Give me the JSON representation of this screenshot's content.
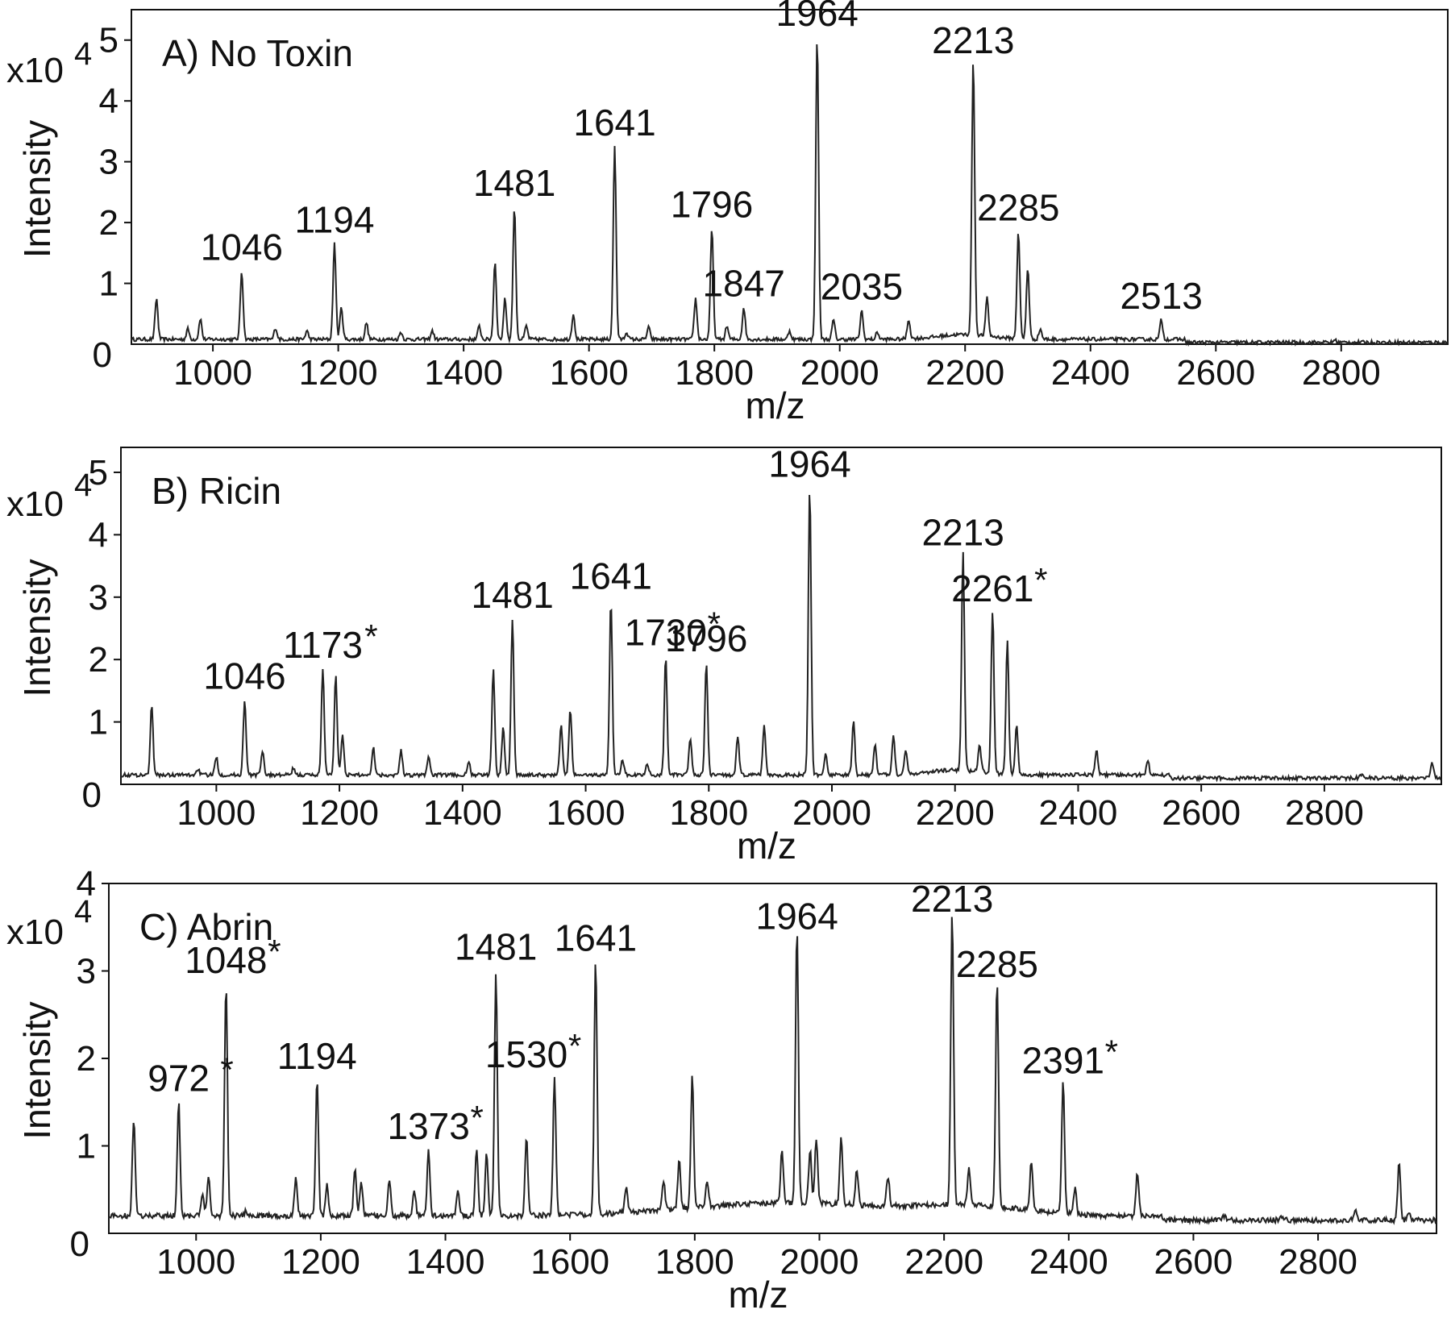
{
  "chart_data": [
    {
      "type": "line",
      "panel": "A",
      "title": "A) No Toxin",
      "xlabel": "m/z",
      "ylabel": "Intensity",
      "y_multiplier": "x10",
      "y_exponent": "4",
      "xlim": [
        870,
        2970
      ],
      "ylim": [
        0,
        5.5
      ],
      "x_ticks": [
        "1000",
        "1200",
        "1400",
        "1600",
        "1800",
        "2000",
        "2200",
        "2400",
        "2600",
        "2800"
      ],
      "y_ticks": [
        "0",
        "1",
        "2",
        "3",
        "4",
        "5"
      ],
      "baseline": 0.08,
      "peaks": [
        {
          "x": 910,
          "y": 0.75,
          "label": ""
        },
        {
          "x": 960,
          "y": 0.25,
          "label": ""
        },
        {
          "x": 980,
          "y": 0.42,
          "label": ""
        },
        {
          "x": 1046,
          "y": 1.2,
          "label": "1046",
          "star": false
        },
        {
          "x": 1100,
          "y": 0.27,
          "label": ""
        },
        {
          "x": 1150,
          "y": 0.22,
          "label": ""
        },
        {
          "x": 1194,
          "y": 1.65,
          "label": "1194",
          "star": false
        },
        {
          "x": 1205,
          "y": 0.6,
          "label": ""
        },
        {
          "x": 1245,
          "y": 0.35,
          "label": ""
        },
        {
          "x": 1300,
          "y": 0.2,
          "label": ""
        },
        {
          "x": 1350,
          "y": 0.22,
          "label": ""
        },
        {
          "x": 1425,
          "y": 0.3,
          "label": ""
        },
        {
          "x": 1450,
          "y": 1.35,
          "label": ""
        },
        {
          "x": 1466,
          "y": 0.75,
          "label": ""
        },
        {
          "x": 1481,
          "y": 2.25,
          "label": "1481",
          "star": false
        },
        {
          "x": 1500,
          "y": 0.3,
          "label": ""
        },
        {
          "x": 1575,
          "y": 0.5,
          "label": ""
        },
        {
          "x": 1641,
          "y": 3.25,
          "label": "1641",
          "star": false
        },
        {
          "x": 1660,
          "y": 0.2,
          "label": ""
        },
        {
          "x": 1695,
          "y": 0.28,
          "label": ""
        },
        {
          "x": 1770,
          "y": 0.75,
          "label": ""
        },
        {
          "x": 1796,
          "y": 1.9,
          "label": "1796",
          "star": false
        },
        {
          "x": 1820,
          "y": 0.3,
          "label": ""
        },
        {
          "x": 1847,
          "y": 0.6,
          "label": "1847",
          "star": false
        },
        {
          "x": 1920,
          "y": 0.22,
          "label": ""
        },
        {
          "x": 1964,
          "y": 5.05,
          "label": "1964",
          "star": false
        },
        {
          "x": 1990,
          "y": 0.4,
          "label": ""
        },
        {
          "x": 2035,
          "y": 0.55,
          "label": "2035",
          "star": false
        },
        {
          "x": 2060,
          "y": 0.2,
          "label": ""
        },
        {
          "x": 2110,
          "y": 0.4,
          "label": ""
        },
        {
          "x": 2213,
          "y": 4.6,
          "label": "2213",
          "star": false
        },
        {
          "x": 2235,
          "y": 0.7,
          "label": ""
        },
        {
          "x": 2285,
          "y": 1.85,
          "label": "2285",
          "star": false
        },
        {
          "x": 2300,
          "y": 1.25,
          "label": ""
        },
        {
          "x": 2320,
          "y": 0.25,
          "label": ""
        },
        {
          "x": 2513,
          "y": 0.4,
          "label": "2513",
          "star": false
        },
        {
          "x": 2790,
          "y": 0.12,
          "label": ""
        }
      ]
    },
    {
      "type": "line",
      "panel": "B",
      "title": "B) Ricin",
      "xlabel": "m/z",
      "ylabel": "Intensity",
      "y_multiplier": "x10",
      "y_exponent": "4",
      "xlim": [
        845,
        2990
      ],
      "ylim": [
        0,
        5.4
      ],
      "x_ticks": [
        "1000",
        "1200",
        "1400",
        "1600",
        "1800",
        "2000",
        "2200",
        "2400",
        "2600",
        "2800"
      ],
      "y_ticks": [
        "0",
        "1",
        "2",
        "3",
        "4",
        "5"
      ],
      "baseline": 0.15,
      "peaks": [
        {
          "x": 895,
          "y": 1.25,
          "label": ""
        },
        {
          "x": 970,
          "y": 0.25,
          "label": ""
        },
        {
          "x": 1000,
          "y": 0.45,
          "label": ""
        },
        {
          "x": 1046,
          "y": 1.35,
          "label": "1046",
          "star": false
        },
        {
          "x": 1075,
          "y": 0.55,
          "label": ""
        },
        {
          "x": 1125,
          "y": 0.25,
          "label": ""
        },
        {
          "x": 1173,
          "y": 1.85,
          "label": "1173",
          "star": true
        },
        {
          "x": 1194,
          "y": 1.75,
          "label": ""
        },
        {
          "x": 1205,
          "y": 0.8,
          "label": ""
        },
        {
          "x": 1255,
          "y": 0.6,
          "label": ""
        },
        {
          "x": 1300,
          "y": 0.55,
          "label": ""
        },
        {
          "x": 1345,
          "y": 0.45,
          "label": ""
        },
        {
          "x": 1410,
          "y": 0.35,
          "label": ""
        },
        {
          "x": 1450,
          "y": 1.85,
          "label": ""
        },
        {
          "x": 1466,
          "y": 0.9,
          "label": ""
        },
        {
          "x": 1481,
          "y": 2.65,
          "label": "1481",
          "star": false
        },
        {
          "x": 1560,
          "y": 0.95,
          "label": ""
        },
        {
          "x": 1575,
          "y": 1.2,
          "label": ""
        },
        {
          "x": 1641,
          "y": 2.95,
          "label": "1641",
          "star": false
        },
        {
          "x": 1660,
          "y": 0.4,
          "label": ""
        },
        {
          "x": 1700,
          "y": 0.35,
          "label": ""
        },
        {
          "x": 1730,
          "y": 2.05,
          "label": "1730",
          "star": true
        },
        {
          "x": 1770,
          "y": 0.75,
          "label": ""
        },
        {
          "x": 1796,
          "y": 1.95,
          "label": "1796",
          "star": false
        },
        {
          "x": 1847,
          "y": 0.75,
          "label": ""
        },
        {
          "x": 1890,
          "y": 0.95,
          "label": ""
        },
        {
          "x": 1964,
          "y": 4.75,
          "label": "1964",
          "star": false
        },
        {
          "x": 1990,
          "y": 0.5,
          "label": ""
        },
        {
          "x": 2035,
          "y": 1.0,
          "label": ""
        },
        {
          "x": 2070,
          "y": 0.65,
          "label": ""
        },
        {
          "x": 2100,
          "y": 0.8,
          "label": ""
        },
        {
          "x": 2120,
          "y": 0.55,
          "label": ""
        },
        {
          "x": 2213,
          "y": 3.65,
          "label": "2213",
          "star": false
        },
        {
          "x": 2240,
          "y": 0.6,
          "label": ""
        },
        {
          "x": 2261,
          "y": 2.75,
          "label": "2261",
          "star": true
        },
        {
          "x": 2285,
          "y": 2.3,
          "label": ""
        },
        {
          "x": 2300,
          "y": 0.95,
          "label": ""
        },
        {
          "x": 2430,
          "y": 0.55,
          "label": ""
        },
        {
          "x": 2513,
          "y": 0.4,
          "label": ""
        },
        {
          "x": 2860,
          "y": 0.2,
          "label": ""
        },
        {
          "x": 2975,
          "y": 0.4,
          "label": ""
        }
      ]
    },
    {
      "type": "line",
      "panel": "C",
      "title": "C) Abrin",
      "xlabel": "m/z",
      "ylabel": "Intensity",
      "y_multiplier": "x10",
      "y_exponent": "4",
      "xlim": [
        860,
        2990
      ],
      "ylim": [
        0,
        4.0
      ],
      "x_ticks": [
        "1000",
        "1200",
        "1400",
        "1600",
        "1800",
        "2000",
        "2200",
        "2400",
        "2600",
        "2800"
      ],
      "y_ticks": [
        "0",
        "1",
        "2",
        "3",
        "4"
      ],
      "baseline": 0.2,
      "peaks": [
        {
          "x": 900,
          "y": 1.3,
          "label": ""
        },
        {
          "x": 972,
          "y": 1.5,
          "label": "972",
          "star": true
        },
        {
          "x": 1010,
          "y": 0.45,
          "label": ""
        },
        {
          "x": 1020,
          "y": 0.65,
          "label": ""
        },
        {
          "x": 1048,
          "y": 2.85,
          "label": "1048",
          "star": true
        },
        {
          "x": 1080,
          "y": 0.25,
          "label": ""
        },
        {
          "x": 1160,
          "y": 0.65,
          "label": ""
        },
        {
          "x": 1194,
          "y": 1.75,
          "label": "1194",
          "star": false
        },
        {
          "x": 1210,
          "y": 0.55,
          "label": ""
        },
        {
          "x": 1255,
          "y": 0.75,
          "label": ""
        },
        {
          "x": 1265,
          "y": 0.6,
          "label": ""
        },
        {
          "x": 1310,
          "y": 0.6,
          "label": ""
        },
        {
          "x": 1350,
          "y": 0.5,
          "label": ""
        },
        {
          "x": 1373,
          "y": 0.95,
          "label": "1373",
          "star": true
        },
        {
          "x": 1420,
          "y": 0.5,
          "label": ""
        },
        {
          "x": 1450,
          "y": 0.95,
          "label": ""
        },
        {
          "x": 1466,
          "y": 0.9,
          "label": ""
        },
        {
          "x": 1481,
          "y": 3.0,
          "label": "1481",
          "star": false
        },
        {
          "x": 1530,
          "y": 1.1,
          "label": ""
        },
        {
          "x": 1530,
          "y": 0,
          "label": "1530",
          "star": true
        },
        {
          "x": 1575,
          "y": 1.75,
          "label": ""
        },
        {
          "x": 1641,
          "y": 3.1,
          "label": "1641",
          "star": false
        },
        {
          "x": 1690,
          "y": 0.5,
          "label": ""
        },
        {
          "x": 1750,
          "y": 0.55,
          "label": ""
        },
        {
          "x": 1775,
          "y": 0.75,
          "label": ""
        },
        {
          "x": 1796,
          "y": 1.7,
          "label": ""
        },
        {
          "x": 1820,
          "y": 0.5,
          "label": ""
        },
        {
          "x": 1940,
          "y": 0.8,
          "label": ""
        },
        {
          "x": 1964,
          "y": 3.35,
          "label": "1964",
          "star": false
        },
        {
          "x": 1985,
          "y": 0.8,
          "label": ""
        },
        {
          "x": 1995,
          "y": 0.95,
          "label": ""
        },
        {
          "x": 2035,
          "y": 0.95,
          "label": ""
        },
        {
          "x": 2060,
          "y": 0.6,
          "label": ""
        },
        {
          "x": 2110,
          "y": 0.55,
          "label": ""
        },
        {
          "x": 2213,
          "y": 3.55,
          "label": "2213",
          "star": false
        },
        {
          "x": 2240,
          "y": 0.6,
          "label": ""
        },
        {
          "x": 2285,
          "y": 2.8,
          "label": "2285",
          "star": false
        },
        {
          "x": 2340,
          "y": 0.75,
          "label": ""
        },
        {
          "x": 2391,
          "y": 1.7,
          "label": "2391",
          "star": true
        },
        {
          "x": 2410,
          "y": 0.5,
          "label": ""
        },
        {
          "x": 2510,
          "y": 0.7,
          "label": ""
        },
        {
          "x": 2650,
          "y": 0.25,
          "label": ""
        },
        {
          "x": 2740,
          "y": 0.25,
          "label": ""
        },
        {
          "x": 2860,
          "y": 0.3,
          "label": ""
        },
        {
          "x": 2930,
          "y": 0.85,
          "label": ""
        },
        {
          "x": 2945,
          "y": 0.3,
          "label": ""
        }
      ]
    }
  ]
}
